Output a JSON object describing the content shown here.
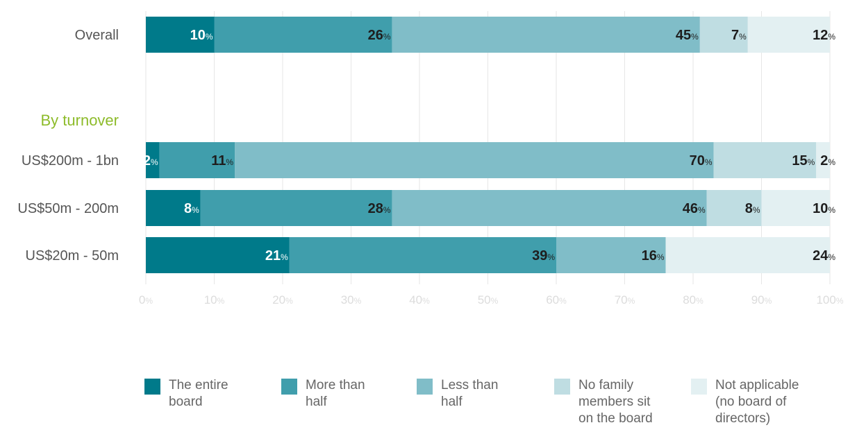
{
  "chart_data": {
    "type": "bar",
    "orientation": "horizontal",
    "stacked": true,
    "group_label": "By turnover",
    "categories": [
      "Overall",
      "US$200m - 1bn",
      "US$50m - 200m",
      "US$20m - 50m"
    ],
    "series": [
      {
        "name": "The entire board",
        "color": "#007a8a",
        "values": [
          10,
          2,
          8,
          21
        ]
      },
      {
        "name": "More than half",
        "color": "#409eac",
        "values": [
          26,
          11,
          28,
          39
        ]
      },
      {
        "name": "Less than half",
        "color": "#80bdc8",
        "values": [
          45,
          70,
          46,
          16
        ]
      },
      {
        "name": "No family members sit on the board",
        "color": "#bfdde2",
        "values": [
          7,
          15,
          8,
          0
        ]
      },
      {
        "name": "Not applicable (no board of directors)",
        "color": "#e3f0f2",
        "values": [
          12,
          2,
          10,
          24
        ]
      }
    ],
    "xlim": [
      0,
      100
    ],
    "x_ticks": [
      "0",
      "10",
      "20",
      "30",
      "40",
      "50",
      "60",
      "70",
      "80",
      "90",
      "100"
    ],
    "value_suffix": "%",
    "grid": true,
    "legend_position": "bottom"
  },
  "legend": [
    {
      "label": "The entire\nboard",
      "color": "#007a8a"
    },
    {
      "label": "More than\nhalf",
      "color": "#409eac"
    },
    {
      "label": "Less than\nhalf",
      "color": "#80bdc8"
    },
    {
      "label": "No family\nmembers sit\non the board",
      "color": "#bfdde2"
    },
    {
      "label": "Not applicable\n(no board of\ndirectors)",
      "color": "#e3f0f2"
    }
  ]
}
